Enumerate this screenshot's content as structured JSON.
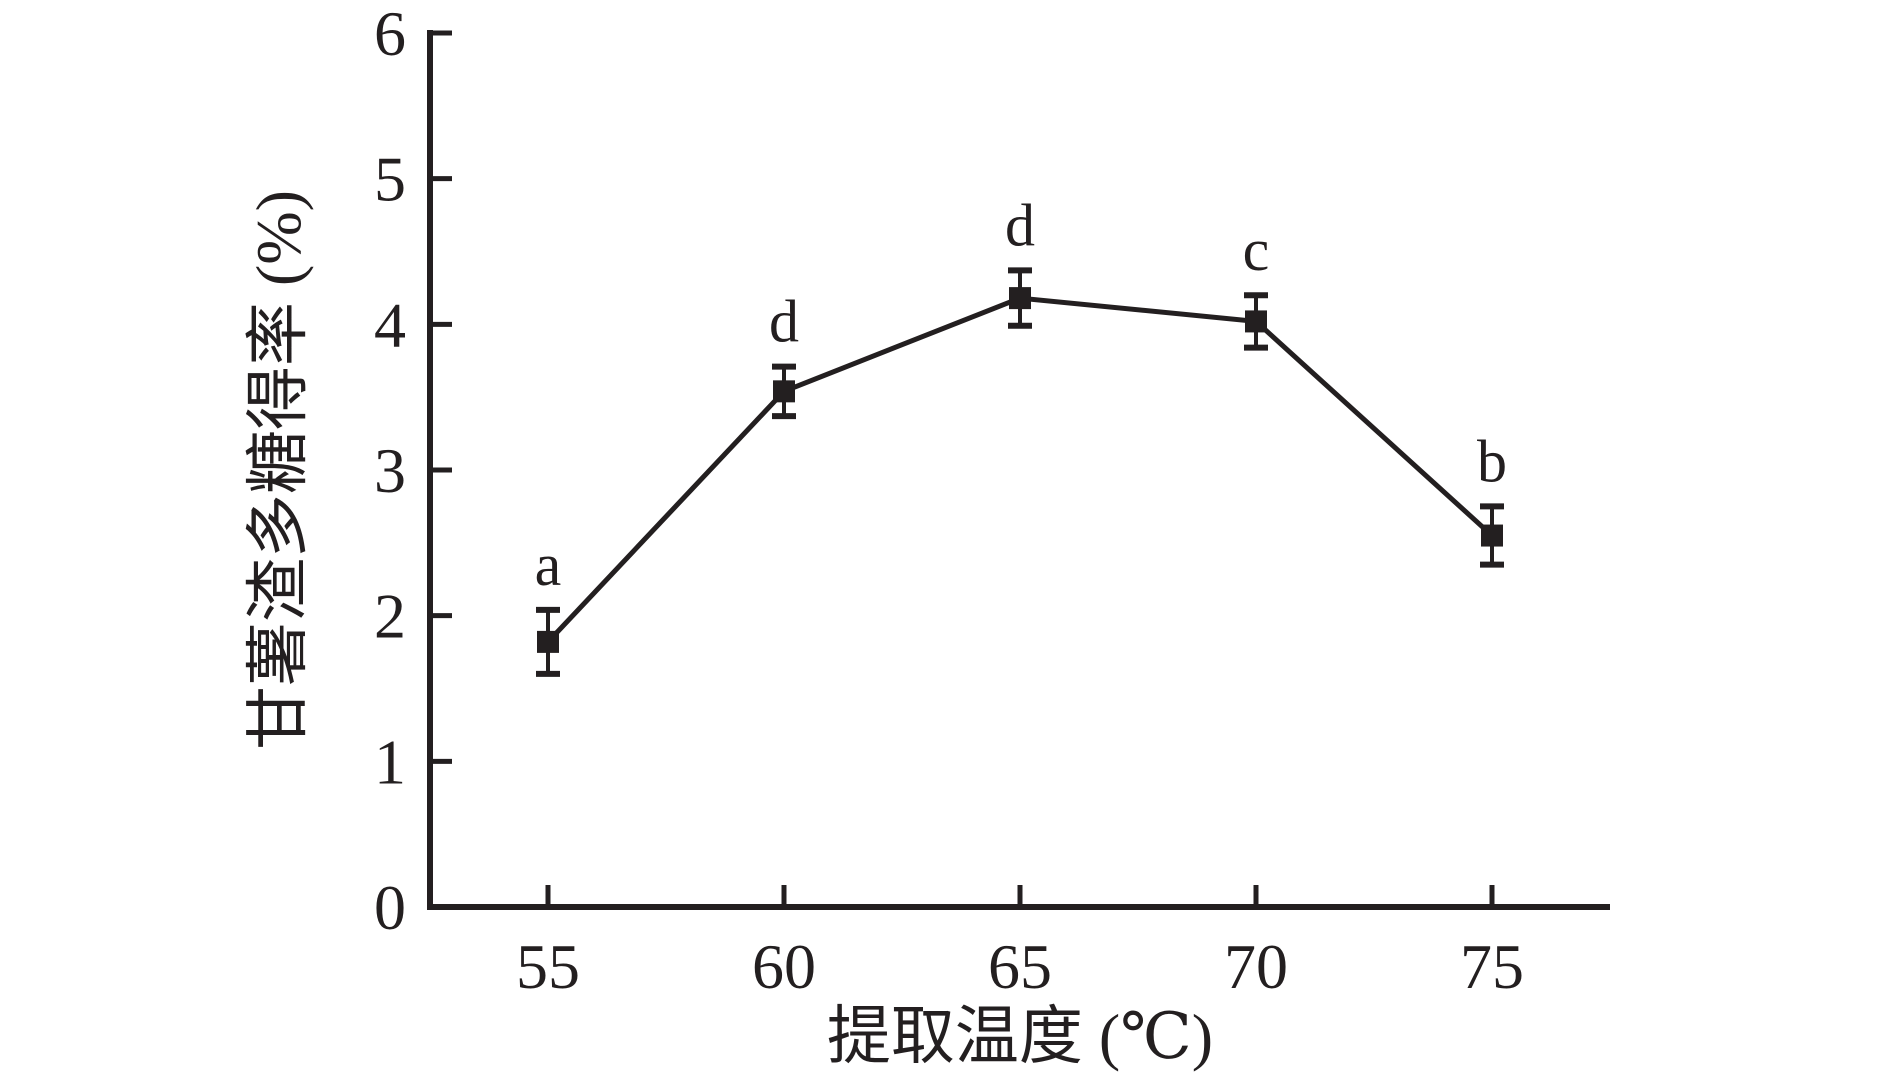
{
  "figure": {
    "background": "#ffffff",
    "ink_color": "#231f20"
  },
  "chart_data": {
    "type": "line",
    "title": "",
    "xlabel": "提取温度 (℃)",
    "ylabel": "甘薯渣多糖得率 (%)",
    "x": [
      55,
      60,
      65,
      70,
      75
    ],
    "series": [
      {
        "name": "甘薯渣多糖得率",
        "values": [
          1.82,
          3.54,
          4.18,
          4.02,
          2.55
        ],
        "errors": [
          0.22,
          0.17,
          0.19,
          0.18,
          0.2
        ],
        "point_labels": [
          "a",
          "d",
          "d",
          "c",
          "b"
        ],
        "marker": "filled-square",
        "color": "#231f20"
      }
    ],
    "xlim": [
      52.5,
      77.5
    ],
    "ylim": [
      0,
      6
    ],
    "xticks": [
      55,
      60,
      65,
      70,
      75
    ],
    "yticks": [
      0,
      1,
      2,
      3,
      4,
      5,
      6
    ],
    "grid": false,
    "legend": "none",
    "axes_style": "L-shaped axes, ticks pointing inward, no top/right spines"
  }
}
